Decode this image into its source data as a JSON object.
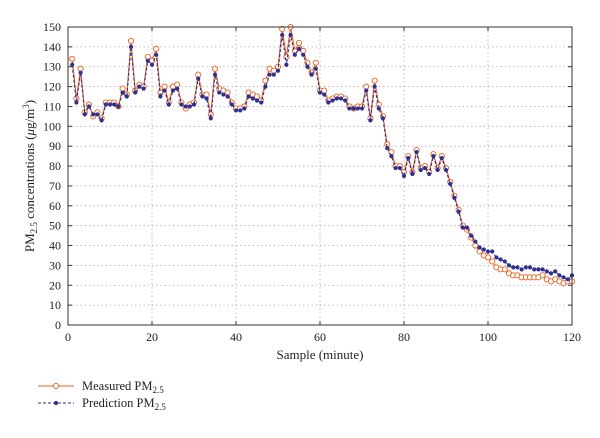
{
  "chart_data": {
    "type": "line",
    "title": "",
    "xlabel": "Sample (minute)",
    "ylabel": {
      "prefix": "PM",
      "sub": "2.5",
      "mid": " concentrations (",
      "unit_italic": "μ",
      "unit_mid": "g/m",
      "sup": "3",
      "suffix": ")"
    },
    "xlim": [
      0,
      120
    ],
    "ylim": [
      0,
      150
    ],
    "xticks": [
      0,
      20,
      40,
      60,
      80,
      100,
      120
    ],
    "yticks": [
      0,
      10,
      20,
      30,
      40,
      50,
      60,
      70,
      80,
      90,
      100,
      110,
      120,
      130,
      140,
      150
    ],
    "grid": true,
    "grid_style": "dotted",
    "legend_position": "bottom-left, below plot",
    "series": [
      {
        "name": "Measured PM2.5",
        "legend": {
          "main": "Measured PM",
          "sub": "2.5"
        },
        "color": "#e8601c",
        "marker": "open-circle",
        "line_style": "solid",
        "x": [
          1,
          2,
          3,
          4,
          5,
          6,
          7,
          8,
          9,
          10,
          11,
          12,
          13,
          14,
          15,
          16,
          17,
          18,
          19,
          20,
          21,
          22,
          23,
          24,
          25,
          26,
          27,
          28,
          29,
          30,
          31,
          32,
          33,
          34,
          35,
          36,
          37,
          38,
          39,
          40,
          41,
          42,
          43,
          44,
          45,
          46,
          47,
          48,
          49,
          50,
          51,
          52,
          53,
          54,
          55,
          56,
          57,
          58,
          59,
          60,
          61,
          62,
          63,
          64,
          65,
          66,
          67,
          68,
          69,
          70,
          71,
          72,
          73,
          74,
          75,
          76,
          77,
          78,
          79,
          80,
          81,
          82,
          83,
          84,
          85,
          86,
          87,
          88,
          89,
          90,
          91,
          92,
          93,
          94,
          95,
          96,
          97,
          98,
          99,
          100,
          101,
          102,
          103,
          104,
          105,
          106,
          107,
          108,
          109,
          110,
          111,
          112,
          113,
          114,
          115,
          116,
          117,
          118,
          119,
          120
        ],
        "y": [
          134,
          114,
          129,
          107,
          111,
          105,
          107,
          104,
          112,
          112,
          112,
          110,
          119,
          116,
          143,
          118,
          121,
          120,
          135,
          133,
          139,
          117,
          120,
          112,
          120,
          121,
          112,
          109,
          111,
          112,
          126,
          116,
          116,
          106,
          129,
          119,
          118,
          117,
          112,
          109,
          109,
          110,
          117,
          116,
          115,
          113,
          123,
          129,
          128,
          130,
          149,
          135,
          150,
          138,
          142,
          138,
          132,
          127,
          132,
          118,
          118,
          113,
          114,
          115,
          115,
          114,
          110,
          109,
          110,
          110,
          120,
          104,
          123,
          111,
          105,
          91,
          87,
          80,
          80,
          77,
          85,
          77,
          88,
          79,
          80,
          77,
          86,
          79,
          85,
          79,
          72,
          65,
          58,
          50,
          48,
          44,
          40,
          37,
          35,
          34,
          32,
          29,
          28,
          28,
          26,
          25,
          25,
          24,
          24,
          24,
          24,
          24,
          25,
          23,
          22,
          23,
          22,
          21,
          22,
          22
        ]
      },
      {
        "name": "Prediction PM2.5",
        "legend": {
          "main": "Prediction PM",
          "sub": "2.5"
        },
        "color": "#2e3192",
        "marker": "filled-dot",
        "line_style": "dashed",
        "x": [
          1,
          2,
          3,
          4,
          5,
          6,
          7,
          8,
          9,
          10,
          11,
          12,
          13,
          14,
          15,
          16,
          17,
          18,
          19,
          20,
          21,
          22,
          23,
          24,
          25,
          26,
          27,
          28,
          29,
          30,
          31,
          32,
          33,
          34,
          35,
          36,
          37,
          38,
          39,
          40,
          41,
          42,
          43,
          44,
          45,
          46,
          47,
          48,
          49,
          50,
          51,
          52,
          53,
          54,
          55,
          56,
          57,
          58,
          59,
          60,
          61,
          62,
          63,
          64,
          65,
          66,
          67,
          68,
          69,
          70,
          71,
          72,
          73,
          74,
          75,
          76,
          77,
          78,
          79,
          80,
          81,
          82,
          83,
          84,
          85,
          86,
          87,
          88,
          89,
          90,
          91,
          92,
          93,
          94,
          95,
          96,
          97,
          98,
          99,
          100,
          101,
          102,
          103,
          104,
          105,
          106,
          107,
          108,
          109,
          110,
          111,
          112,
          113,
          114,
          115,
          116,
          117,
          118,
          119,
          120
        ],
        "y": [
          131,
          112,
          127,
          106,
          110,
          106,
          106,
          103,
          111,
          111,
          111,
          110,
          117,
          115,
          140,
          117,
          120,
          119,
          133,
          131,
          136,
          115,
          118,
          111,
          118,
          119,
          111,
          110,
          110,
          111,
          124,
          115,
          114,
          104,
          126,
          117,
          116,
          115,
          111,
          108,
          108,
          109,
          115,
          114,
          113,
          112,
          120,
          126,
          126,
          128,
          146,
          131,
          146,
          136,
          139,
          136,
          130,
          126,
          129,
          117,
          116,
          112,
          113,
          114,
          114,
          113,
          109,
          109,
          109,
          109,
          118,
          103,
          120,
          109,
          104,
          89,
          85,
          79,
          79,
          75,
          84,
          76,
          87,
          78,
          79,
          76,
          85,
          78,
          84,
          78,
          71,
          64,
          57,
          49,
          49,
          45,
          42,
          39,
          38,
          37,
          37,
          34,
          33,
          32,
          30,
          29,
          29,
          28,
          29,
          29,
          28,
          28,
          28,
          27,
          26,
          27,
          25,
          24,
          23,
          25
        ]
      }
    ]
  }
}
